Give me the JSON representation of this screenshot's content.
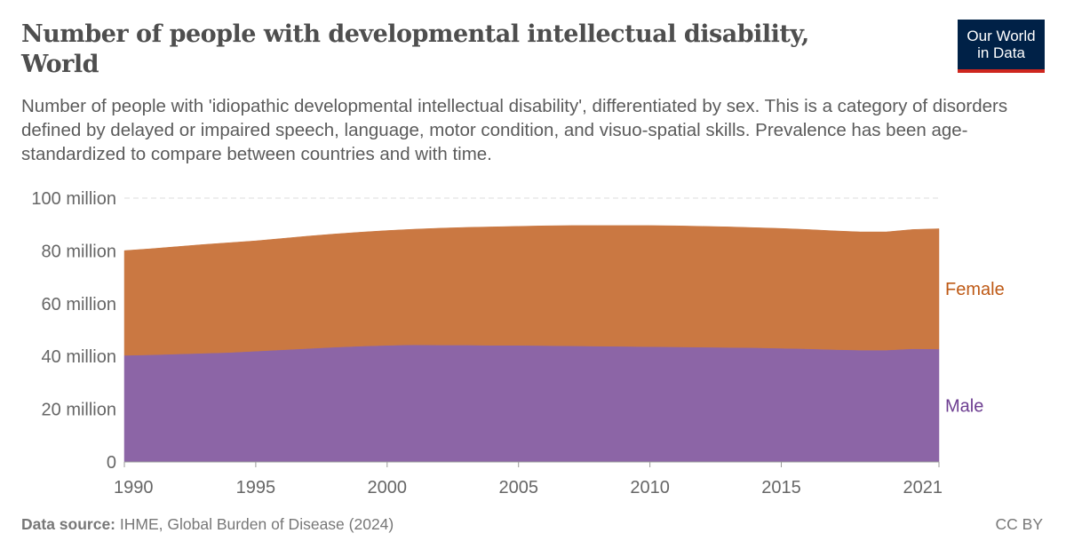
{
  "header": {
    "title": "Number of people with developmental intellectual disability, World",
    "subtitle": "Number of people with 'idiopathic developmental intellectual disability', differentiated by sex. This is a category of disorders defined by delayed or impaired speech, language, motor condition, and visuo-spatial skills. Prevalence has been age-standardized to compare between countries and with time.",
    "logo": "Our World in Data"
  },
  "footer": {
    "source_label": "Data source:",
    "source": "IHME, Global Burden of Disease (2024)",
    "license": "CC BY"
  },
  "chart_data": {
    "type": "area",
    "stacked": true,
    "x": [
      1990,
      1991,
      1992,
      1993,
      1994,
      1995,
      1996,
      1997,
      1998,
      1999,
      2000,
      2001,
      2002,
      2003,
      2004,
      2005,
      2006,
      2007,
      2008,
      2009,
      2010,
      2011,
      2012,
      2013,
      2014,
      2015,
      2016,
      2017,
      2018,
      2019,
      2020,
      2021
    ],
    "series": [
      {
        "name": "Male",
        "color": "#8c65a6",
        "label_color": "#6d3e91",
        "values": [
          40.4,
          40.6,
          40.9,
          41.2,
          41.5,
          42.0,
          42.5,
          43.0,
          43.5,
          43.9,
          44.2,
          44.4,
          44.3,
          44.3,
          44.2,
          44.2,
          44.1,
          44.0,
          43.9,
          43.8,
          43.7,
          43.6,
          43.5,
          43.4,
          43.3,
          43.1,
          42.9,
          42.6,
          42.4,
          42.4,
          42.9,
          42.8
        ]
      },
      {
        "name": "Female",
        "color": "#ca7842",
        "label_color": "#be5915",
        "values": [
          39.7,
          40.2,
          40.7,
          41.2,
          41.6,
          41.8,
          42.2,
          42.6,
          42.9,
          43.2,
          43.5,
          43.8,
          44.3,
          44.6,
          44.9,
          45.1,
          45.4,
          45.6,
          45.7,
          45.8,
          45.9,
          45.9,
          45.8,
          45.7,
          45.5,
          45.4,
          45.2,
          45.0,
          44.8,
          44.8,
          45.2,
          45.6
        ]
      }
    ],
    "unit": "million",
    "ylim": [
      0,
      100
    ],
    "yticks": [
      {
        "v": 0,
        "label": "0"
      },
      {
        "v": 20,
        "label": "20 million"
      },
      {
        "v": 40,
        "label": "40 million"
      },
      {
        "v": 60,
        "label": "60 million"
      },
      {
        "v": 80,
        "label": "80 million"
      },
      {
        "v": 100,
        "label": "100 million"
      }
    ],
    "xticks": [
      1990,
      1995,
      2000,
      2005,
      2010,
      2015,
      2021
    ],
    "grid": true,
    "legend": "inline-right"
  }
}
